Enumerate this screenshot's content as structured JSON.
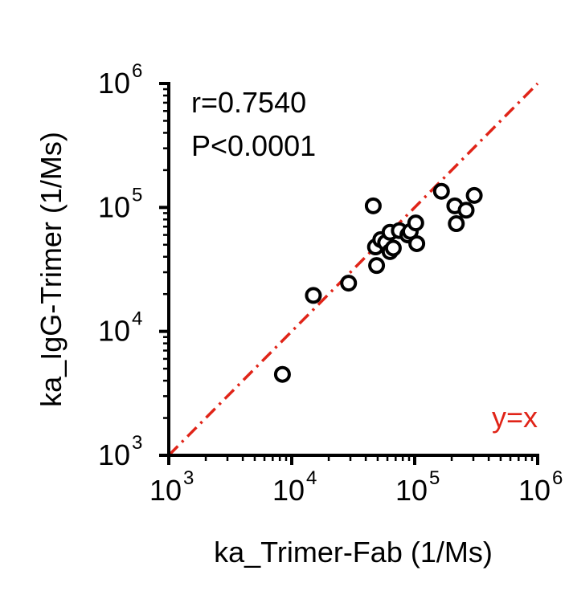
{
  "chart_data": {
    "type": "scatter",
    "xlabel": "ka_Trimer-Fab (1/Ms)",
    "ylabel": "ka_IgG-Trimer (1/Ms)",
    "x_scale": "log",
    "y_scale": "log",
    "xlim": [
      1000,
      1000000
    ],
    "ylim": [
      1000,
      1000000
    ],
    "x_ticks": [
      {
        "base": "10",
        "exp": "3"
      },
      {
        "base": "10",
        "exp": "4"
      },
      {
        "base": "10",
        "exp": "5"
      },
      {
        "base": "10",
        "exp": "6"
      }
    ],
    "y_ticks": [
      {
        "base": "10",
        "exp": "3"
      },
      {
        "base": "10",
        "exp": "4"
      },
      {
        "base": "10",
        "exp": "5"
      },
      {
        "base": "10",
        "exp": "6"
      }
    ],
    "grid": false,
    "annotations": {
      "r": "r=0.7540",
      "p": "P<0.0001"
    },
    "reference_line": {
      "label": "y=x",
      "color": "#e02418"
    },
    "marker_color": "#000000",
    "points": [
      {
        "x": 8400,
        "y": 4500
      },
      {
        "x": 15000,
        "y": 19500
      },
      {
        "x": 29000,
        "y": 24500
      },
      {
        "x": 46000,
        "y": 103000
      },
      {
        "x": 48000,
        "y": 48000
      },
      {
        "x": 49000,
        "y": 34000
      },
      {
        "x": 53000,
        "y": 55000
      },
      {
        "x": 58000,
        "y": 52000
      },
      {
        "x": 63000,
        "y": 44000
      },
      {
        "x": 63000,
        "y": 63000
      },
      {
        "x": 67000,
        "y": 47000
      },
      {
        "x": 75000,
        "y": 65000
      },
      {
        "x": 88000,
        "y": 60000
      },
      {
        "x": 92000,
        "y": 64000
      },
      {
        "x": 102000,
        "y": 75000
      },
      {
        "x": 104000,
        "y": 51000
      },
      {
        "x": 165000,
        "y": 135000
      },
      {
        "x": 212000,
        "y": 103000
      },
      {
        "x": 218000,
        "y": 74000
      },
      {
        "x": 262000,
        "y": 95000
      },
      {
        "x": 305000,
        "y": 125000
      }
    ]
  }
}
